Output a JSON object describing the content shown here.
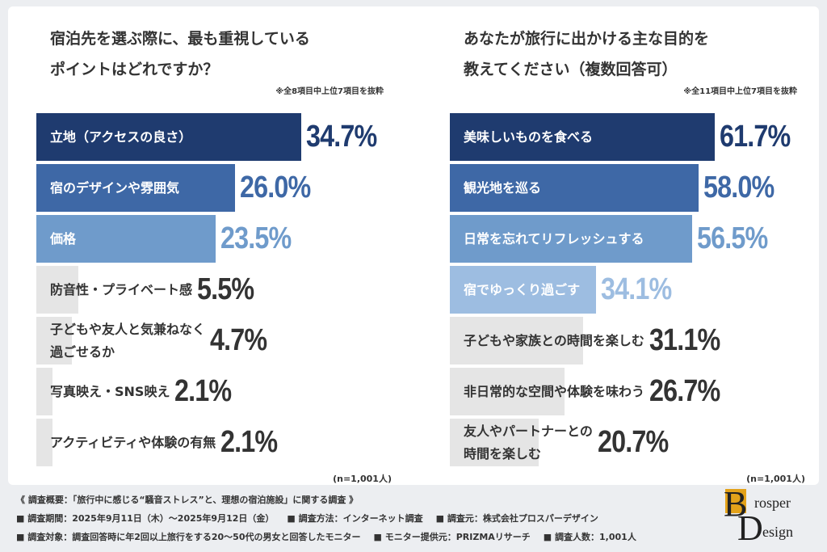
{
  "chart_data": [
    {
      "type": "bar",
      "title": "宿泊先を選ぶ際に、最も重視している\nポイントはどれですか？",
      "note": "※全8項目中上位7項目を抜粋",
      "sample": "(n=1,001人)",
      "categories": [
        "立地（アクセスの良さ）",
        "宿のデザインや雰囲気",
        "価格",
        "防音性・プライベート感",
        "子どもや友人と気兼ねなく\n過ごせるか",
        "写真映え・SNS映え",
        "アクティビティや体験の有無"
      ],
      "values": [
        34.7,
        26.0,
        23.5,
        5.5,
        4.7,
        2.1,
        2.1
      ],
      "value_labels": [
        "34.7%",
        "26.0%",
        "23.5%",
        "5.5%",
        "4.7%",
        "2.1%",
        "2.1%"
      ],
      "colors": [
        "#1f3b6f",
        "#3e68a6",
        "#6f9bcb",
        "#e5e5e5",
        "#e5e5e5",
        "#e5e5e5",
        "#e5e5e5"
      ]
    },
    {
      "type": "bar",
      "title": "あなたが旅行に出かける主な目的を\n教えてください（複数回答可）",
      "note": "※全11項目中上位7項目を抜粋",
      "sample": "(n=1,001人)",
      "categories": [
        "美味しいものを食べる",
        "観光地を巡る",
        "日常を忘れてリフレッシュする",
        "宿でゆっくり過ごす",
        "子どもや家族との時間を楽しむ",
        "非日常的な空間や体験を味わう",
        "友人やパートナーとの\n時間を楽しむ"
      ],
      "values": [
        61.7,
        58.0,
        56.5,
        34.1,
        31.1,
        26.7,
        20.7
      ],
      "value_labels": [
        "61.7%",
        "58.0%",
        "56.5%",
        "34.1%",
        "31.1%",
        "26.7%",
        "20.7%"
      ],
      "colors": [
        "#1f3b6f",
        "#3e68a6",
        "#6f9bcb",
        "#9dbde1",
        "#e5e5e5",
        "#e5e5e5",
        "#e5e5e5"
      ]
    }
  ],
  "footer": {
    "heading": "《 調査概要：「旅行中に感じる“騒音ストレス”と、理想の宿泊施設」に関する調査 》",
    "line1": [
      "■ 調査期間：2025年9月11日（木）～2025年9月12日（金）",
      "■ 調査方法：インターネット調査",
      "■ 調査元：株式会社プロスパーデザイン"
    ],
    "line2": [
      "■ 調査対象：調査回答時に年2回以上旅行をする20～50代の男女と回答したモニター",
      "■ モニター提供元：PRIZMAリサーチ",
      "■ 調査人数：1,001人"
    ]
  },
  "logo": {
    "b": "B",
    "top": "rosper",
    "d": "D",
    "bottom": "esign"
  }
}
